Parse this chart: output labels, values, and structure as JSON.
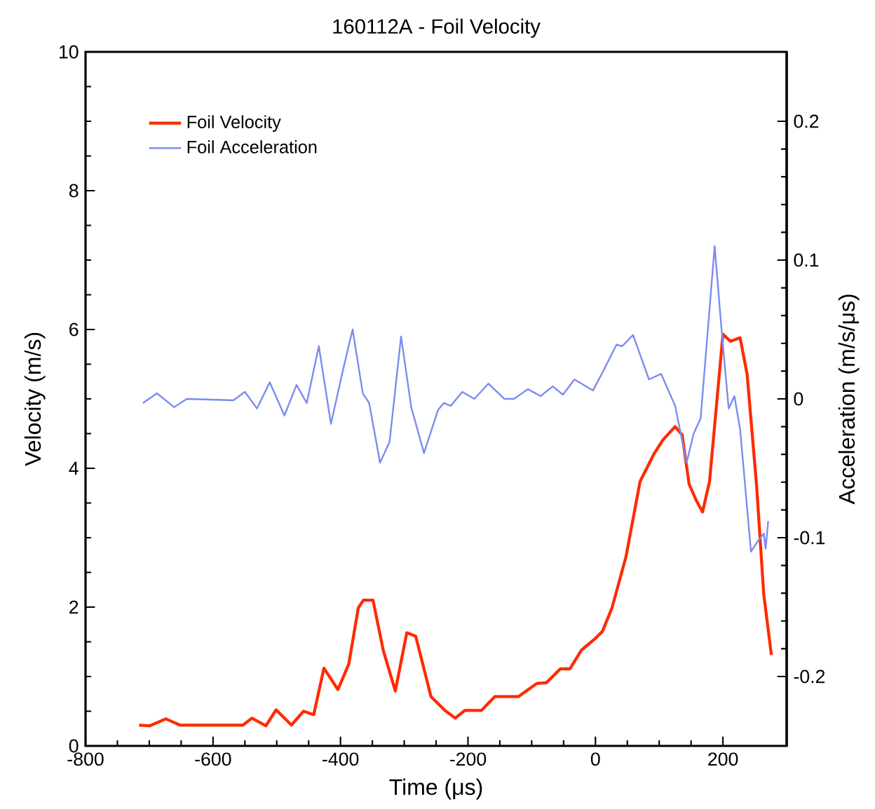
{
  "chart_data": {
    "type": "line",
    "title": "160112A - Foil Velocity",
    "xlabel": "Time (μs)",
    "ylabel": "Velocity (m/s)",
    "y2label": "Acceleration (m/s/μs)",
    "xlim": [
      -800,
      300
    ],
    "xticks": [
      -800,
      -600,
      -400,
      -200,
      0,
      200
    ],
    "ylim": [
      0,
      10
    ],
    "yticks": [
      0,
      2,
      4,
      6,
      8,
      10
    ],
    "y2lim": [
      -0.25,
      0.25
    ],
    "y2ticks": [
      -0.2,
      -0.1,
      0,
      0.1,
      0.2
    ],
    "legend": "top left",
    "series": [
      {
        "name": "Foil Velocity",
        "color": "#ff2a00",
        "x": [
          -716,
          -699,
          -674,
          -652,
          -604,
          -553,
          -539,
          -517,
          -501,
          -477,
          -458,
          -442,
          -426,
          -404,
          -387,
          -372,
          -364,
          -349,
          -333,
          -314,
          -296,
          -282,
          -258,
          -236,
          -220,
          -205,
          -179,
          -158,
          -121,
          -92,
          -77,
          -55,
          -40,
          -22,
          0,
          11,
          26,
          48,
          70,
          92,
          106,
          125,
          136,
          147,
          158,
          168,
          179,
          200,
          212,
          227,
          238,
          253,
          264,
          276
        ],
        "values": [
          0.3,
          0.29,
          0.39,
          0.3,
          0.3,
          0.3,
          0.4,
          0.29,
          0.52,
          0.3,
          0.5,
          0.45,
          1.12,
          0.81,
          1.18,
          1.99,
          2.1,
          2.1,
          1.38,
          0.79,
          1.63,
          1.58,
          0.71,
          0.51,
          0.4,
          0.51,
          0.51,
          0.71,
          0.71,
          0.9,
          0.91,
          1.11,
          1.11,
          1.38,
          1.55,
          1.65,
          1.99,
          2.73,
          3.81,
          4.21,
          4.41,
          4.6,
          4.48,
          3.77,
          3.54,
          3.37,
          3.81,
          5.93,
          5.83,
          5.88,
          5.35,
          3.73,
          2.19,
          1.31
        ]
      },
      {
        "name": "Foil Acceleration",
        "color": "#7b8cf0",
        "axis": "y2",
        "x": [
          -710,
          -688,
          -661,
          -641,
          -568,
          -550,
          -531,
          -511,
          -488,
          -469,
          -453,
          -434,
          -415,
          -396,
          -381,
          -365,
          -355,
          -338,
          -323,
          -305,
          -289,
          -269,
          -247,
          -238,
          -227,
          -209,
          -190,
          -168,
          -143,
          -128,
          -106,
          -86,
          -67,
          -51,
          -33,
          -4,
          11,
          33,
          42,
          59,
          84,
          103,
          125,
          143,
          154,
          165,
          187,
          198,
          209,
          218,
          227,
          244,
          254,
          264,
          267,
          271
        ],
        "values": [
          -0.003,
          0.004,
          -0.006,
          0.0,
          -0.001,
          0.005,
          -0.007,
          0.012,
          -0.012,
          0.01,
          -0.003,
          0.038,
          -0.018,
          0.021,
          0.05,
          0.004,
          -0.003,
          -0.046,
          -0.031,
          0.045,
          -0.006,
          -0.039,
          -0.008,
          -0.003,
          -0.005,
          0.005,
          0.0,
          0.011,
          0.0,
          0.0,
          0.007,
          0.002,
          0.009,
          0.003,
          0.014,
          0.006,
          0.019,
          0.039,
          0.038,
          0.046,
          0.014,
          0.018,
          -0.005,
          -0.046,
          -0.025,
          -0.014,
          0.11,
          0.049,
          -0.007,
          0.002,
          -0.022,
          -0.11,
          -0.103,
          -0.097,
          -0.108,
          -0.088
        ]
      }
    ]
  }
}
